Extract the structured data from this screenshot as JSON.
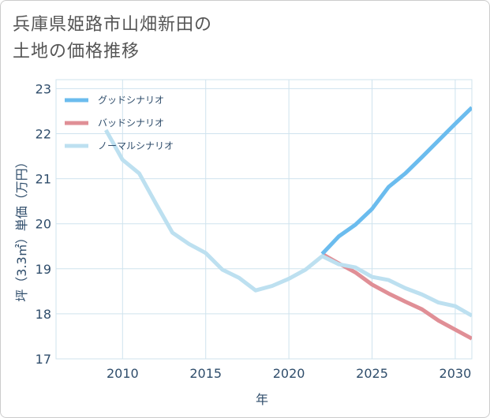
{
  "title": {
    "line1": "兵庫県姫路市山畑新田の",
    "line2": "土地の価格推移"
  },
  "colors": {
    "good": "#6bbcee",
    "bad": "#e08f96",
    "normal": "#bde0f0",
    "grid": "#cfe3ee",
    "axis_text": "#2f4d6b"
  },
  "chart_data": {
    "type": "line",
    "xlabel": "年",
    "ylabel": "坪（3.3㎡）単価（万円）",
    "xlim": [
      2006,
      2031
    ],
    "ylim": [
      17,
      23.2
    ],
    "x_ticks": [
      2010,
      2015,
      2020,
      2025,
      2030
    ],
    "y_ticks": [
      17,
      18,
      19,
      20,
      21,
      22,
      23
    ],
    "grid": true,
    "legend_position": "top-left",
    "series": [
      {
        "name": "グッドシナリオ",
        "color_key": "good",
        "x": [
          2022,
          2023,
          2024,
          2025,
          2026,
          2027,
          2028,
          2029,
          2030,
          2031
        ],
        "y": [
          19.33,
          19.72,
          19.98,
          20.33,
          20.82,
          21.12,
          21.48,
          21.85,
          22.22,
          22.58
        ]
      },
      {
        "name": "バッドシナリオ",
        "color_key": "bad",
        "x": [
          2022,
          2023,
          2024,
          2025,
          2026,
          2027,
          2028,
          2029,
          2030,
          2031
        ],
        "y": [
          19.33,
          19.12,
          18.92,
          18.65,
          18.45,
          18.27,
          18.1,
          17.85,
          17.65,
          17.45
        ]
      },
      {
        "name": "ノーマルシナリオ",
        "color_key": "normal",
        "x": [
          2009,
          2010,
          2011,
          2012,
          2013,
          2014,
          2015,
          2016,
          2017,
          2018,
          2019,
          2020,
          2021,
          2022,
          2023,
          2024,
          2025,
          2026,
          2027,
          2028,
          2029,
          2030,
          2031
        ],
        "y": [
          22.08,
          21.42,
          21.12,
          20.45,
          19.8,
          19.55,
          19.35,
          18.98,
          18.8,
          18.52,
          18.62,
          18.78,
          18.98,
          19.28,
          19.1,
          19.03,
          18.82,
          18.75,
          18.57,
          18.43,
          18.25,
          18.17,
          17.96
        ]
      }
    ]
  }
}
